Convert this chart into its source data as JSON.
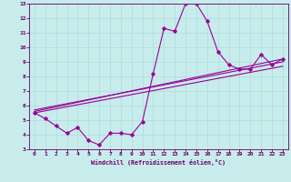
{
  "xlabel": "Windchill (Refroidissement éolien,°C)",
  "bg_color": "#c8ecec",
  "grid_color": "#b0dede",
  "line_color": "#990099",
  "text_color": "#660066",
  "xlim": [
    -0.5,
    23.5
  ],
  "ylim": [
    3,
    13
  ],
  "xticks": [
    0,
    1,
    2,
    3,
    4,
    5,
    6,
    7,
    8,
    9,
    10,
    11,
    12,
    13,
    14,
    15,
    16,
    17,
    18,
    19,
    20,
    21,
    22,
    23
  ],
  "yticks": [
    3,
    4,
    5,
    6,
    7,
    8,
    9,
    10,
    11,
    12,
    13
  ],
  "curve1_x": [
    0,
    1,
    2,
    3,
    4,
    5,
    6,
    7,
    8,
    9,
    10,
    11,
    12,
    13,
    14,
    15,
    16,
    17,
    18,
    19,
    20,
    21,
    22,
    23
  ],
  "curve1_y": [
    5.5,
    5.1,
    4.6,
    4.1,
    4.5,
    3.6,
    3.3,
    4.1,
    4.1,
    4.0,
    4.9,
    8.2,
    11.3,
    11.1,
    13.0,
    13.0,
    11.8,
    9.7,
    8.8,
    8.5,
    8.5,
    9.5,
    8.8,
    9.2
  ],
  "line1_x": [
    0,
    23
  ],
  "line1_y": [
    5.5,
    8.7
  ],
  "line2_x": [
    0,
    23
  ],
  "line2_y": [
    5.6,
    9.2
  ],
  "line3_x": [
    0,
    23
  ],
  "line3_y": [
    5.7,
    9.0
  ]
}
